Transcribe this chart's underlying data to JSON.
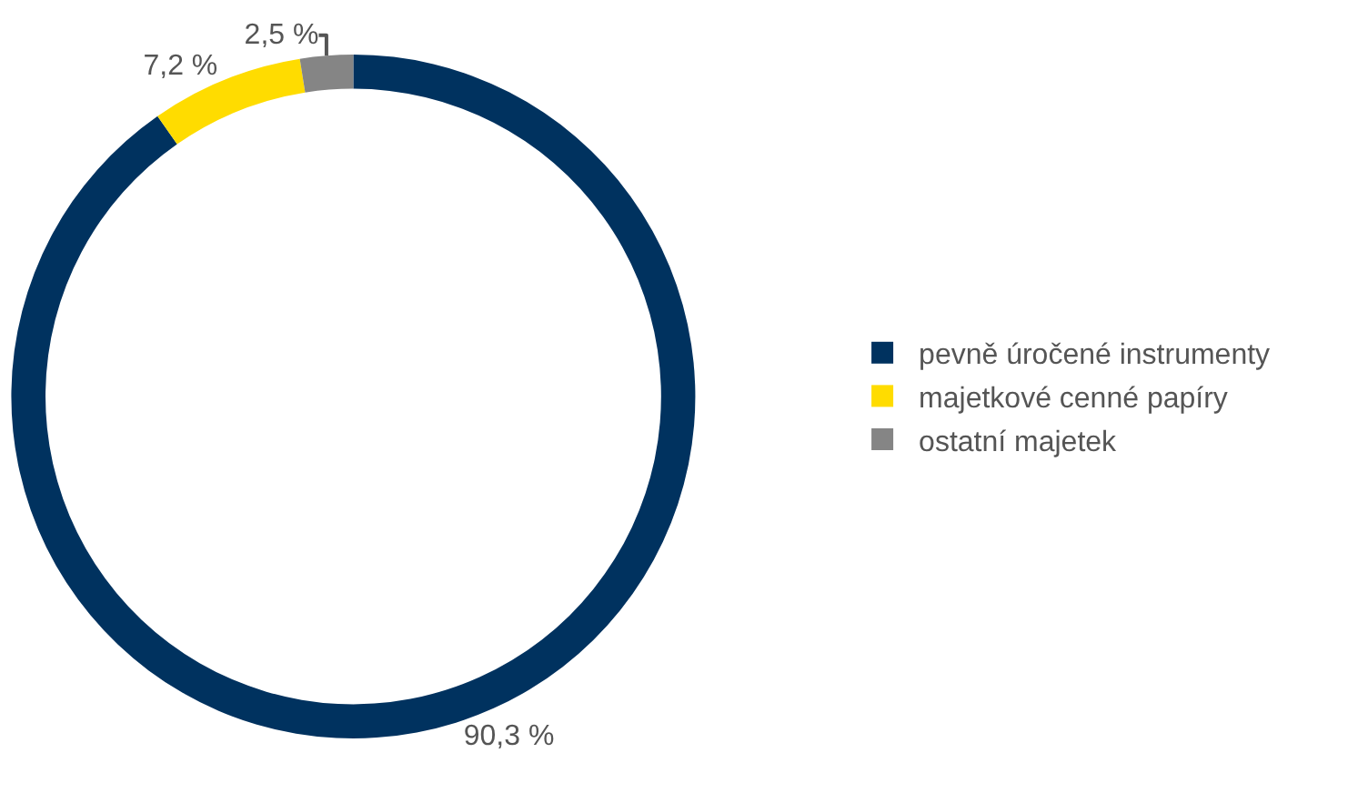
{
  "chart_data": {
    "type": "donut",
    "categories": [
      "pevně úročené instrumenty",
      "majetkové cenné papíry",
      "ostatní majetek"
    ],
    "values": [
      90.3,
      7.2,
      2.5
    ],
    "value_labels": [
      "90,3 %",
      "7,2 %",
      "2,5 %"
    ],
    "colors": [
      "#00325f",
      "#ffdc00",
      "#858585"
    ],
    "legend": "right"
  }
}
